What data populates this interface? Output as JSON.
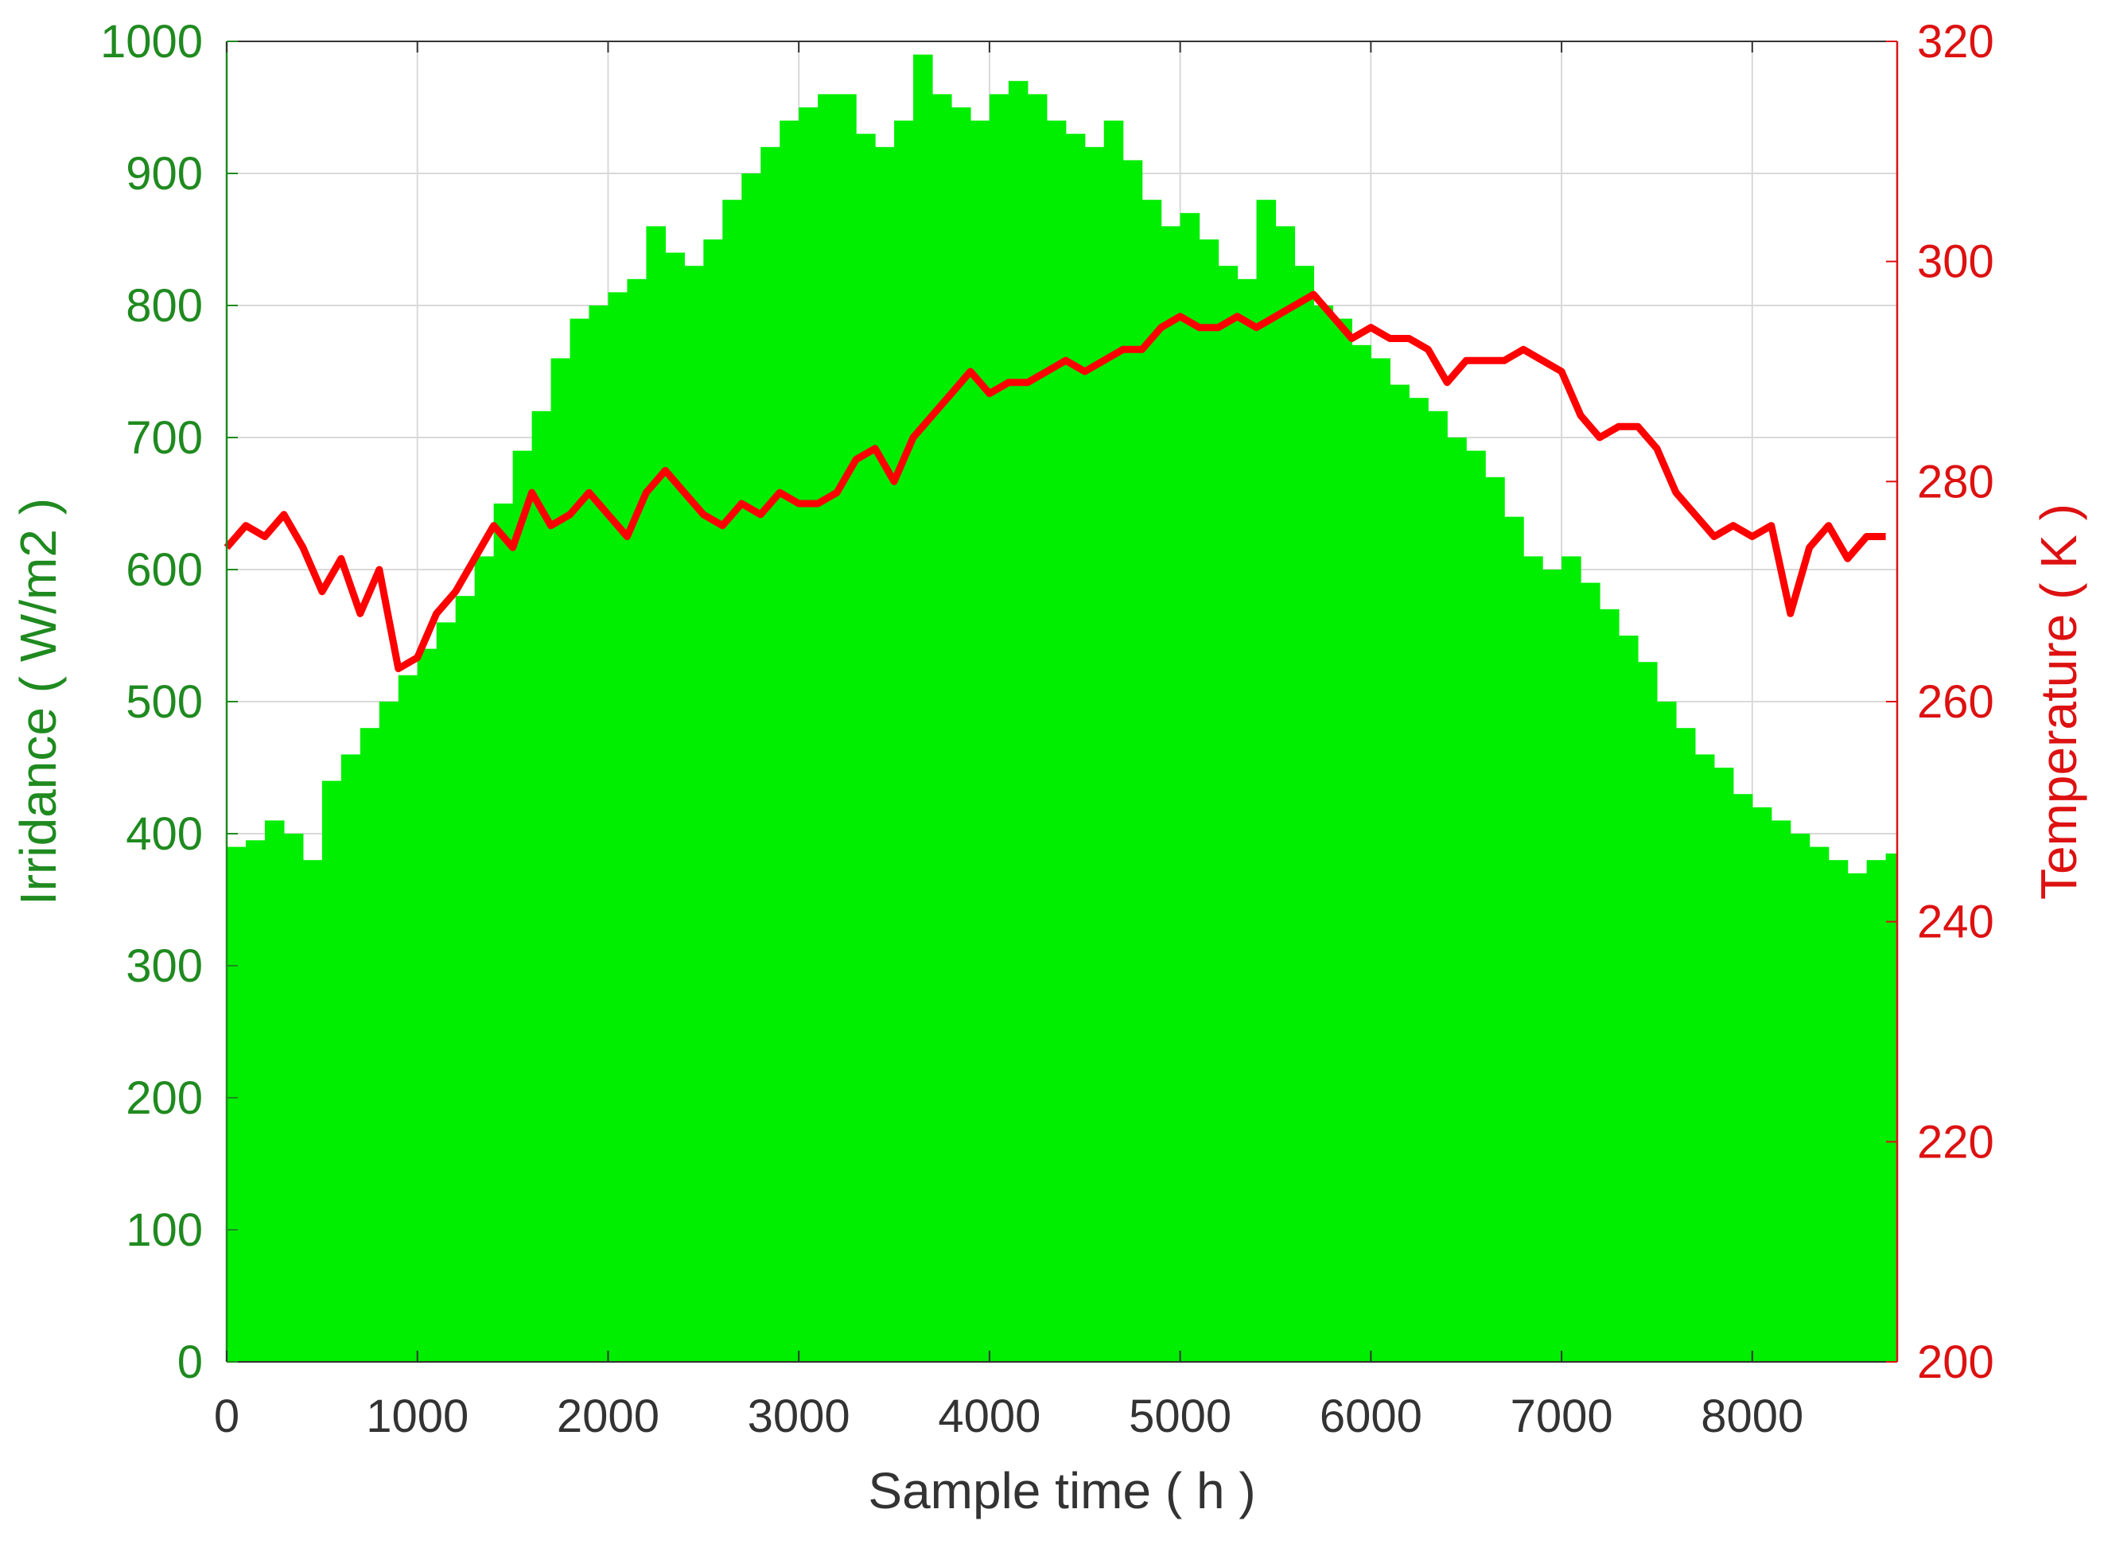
{
  "chart_data": {
    "type": "bar+line",
    "xlabel": "Sample time ( h )",
    "ylabel_left": "Irridance ( W/m2 )",
    "ylabel_right": "Temperature ( K )",
    "xlim": [
      0,
      8760
    ],
    "ylim_left": [
      0,
      1000
    ],
    "ylim_right": [
      200,
      320
    ],
    "x_ticks": [
      0,
      1000,
      2000,
      3000,
      4000,
      5000,
      6000,
      7000,
      8000
    ],
    "y_left_ticks": [
      0,
      100,
      200,
      300,
      400,
      500,
      600,
      700,
      800,
      900,
      1000
    ],
    "y_right_ticks": [
      200,
      220,
      240,
      260,
      280,
      300,
      320
    ],
    "grid": true,
    "legend": "none",
    "colors": {
      "irradiance": "#00ee00",
      "temperature": "#ff0000",
      "left_axis": "#1f8a1f",
      "right_axis": "#dd1111",
      "grid": "#d9d9d9",
      "bottom_axis": "#333333"
    },
    "series": [
      {
        "key": "irradiance",
        "kind": "bar",
        "axis": "left",
        "x": [
          0,
          100,
          200,
          300,
          400,
          500,
          600,
          700,
          800,
          900,
          1000,
          1100,
          1200,
          1300,
          1400,
          1500,
          1600,
          1700,
          1800,
          1900,
          2000,
          2100,
          2200,
          2300,
          2400,
          2500,
          2600,
          2700,
          2800,
          2900,
          3000,
          3100,
          3200,
          3300,
          3400,
          3500,
          3600,
          3700,
          3800,
          3900,
          4000,
          4100,
          4200,
          4300,
          4400,
          4500,
          4600,
          4700,
          4800,
          4900,
          5000,
          5100,
          5200,
          5300,
          5400,
          5500,
          5600,
          5700,
          5800,
          5900,
          6000,
          6100,
          6200,
          6300,
          6400,
          6500,
          6600,
          6700,
          6800,
          6900,
          7000,
          7100,
          7200,
          7300,
          7400,
          7500,
          7600,
          7700,
          7800,
          7900,
          8000,
          8100,
          8200,
          8300,
          8400,
          8500,
          8600,
          8700
        ],
        "values": [
          390,
          395,
          410,
          400,
          380,
          440,
          460,
          480,
          500,
          520,
          540,
          560,
          580,
          610,
          650,
          690,
          720,
          760,
          790,
          800,
          810,
          820,
          860,
          840,
          830,
          850,
          880,
          900,
          920,
          940,
          950,
          960,
          960,
          930,
          920,
          940,
          990,
          960,
          950,
          940,
          960,
          970,
          960,
          940,
          930,
          920,
          940,
          910,
          880,
          860,
          870,
          850,
          830,
          820,
          880,
          860,
          830,
          800,
          790,
          770,
          760,
          740,
          730,
          720,
          700,
          690,
          670,
          640,
          610,
          600,
          610,
          590,
          570,
          550,
          530,
          500,
          480,
          460,
          450,
          430,
          420,
          410,
          400,
          390,
          380,
          370,
          380,
          385
        ]
      },
      {
        "key": "temperature",
        "kind": "line",
        "axis": "right",
        "x": [
          0,
          100,
          200,
          300,
          400,
          500,
          600,
          700,
          800,
          900,
          1000,
          1100,
          1200,
          1300,
          1400,
          1500,
          1600,
          1700,
          1800,
          1900,
          2000,
          2100,
          2200,
          2300,
          2400,
          2500,
          2600,
          2700,
          2800,
          2900,
          3000,
          3100,
          3200,
          3300,
          3400,
          3500,
          3600,
          3700,
          3800,
          3900,
          4000,
          4100,
          4200,
          4300,
          4400,
          4500,
          4600,
          4700,
          4800,
          4900,
          5000,
          5100,
          5200,
          5300,
          5400,
          5500,
          5600,
          5700,
          5800,
          5900,
          6000,
          6100,
          6200,
          6300,
          6400,
          6500,
          6600,
          6700,
          6800,
          6900,
          7000,
          7100,
          7200,
          7300,
          7400,
          7500,
          7600,
          7700,
          7800,
          7900,
          8000,
          8100,
          8200,
          8300,
          8400,
          8500,
          8600,
          8700
        ],
        "values": [
          274,
          276,
          275,
          277,
          274,
          270,
          273,
          268,
          272,
          263,
          264,
          268,
          270,
          273,
          276,
          274,
          279,
          276,
          277,
          279,
          277,
          275,
          279,
          281,
          279,
          277,
          276,
          278,
          277,
          279,
          278,
          278,
          279,
          282,
          283,
          280,
          284,
          286,
          288,
          290,
          288,
          289,
          289,
          290,
          291,
          290,
          291,
          292,
          292,
          294,
          295,
          294,
          294,
          295,
          294,
          295,
          296,
          297,
          295,
          293,
          294,
          293,
          293,
          292,
          289,
          291,
          291,
          291,
          292,
          291,
          290,
          286,
          284,
          285,
          285,
          283,
          279,
          277,
          275,
          276,
          275,
          276,
          268,
          274,
          276,
          273,
          275,
          275
        ]
      }
    ]
  }
}
